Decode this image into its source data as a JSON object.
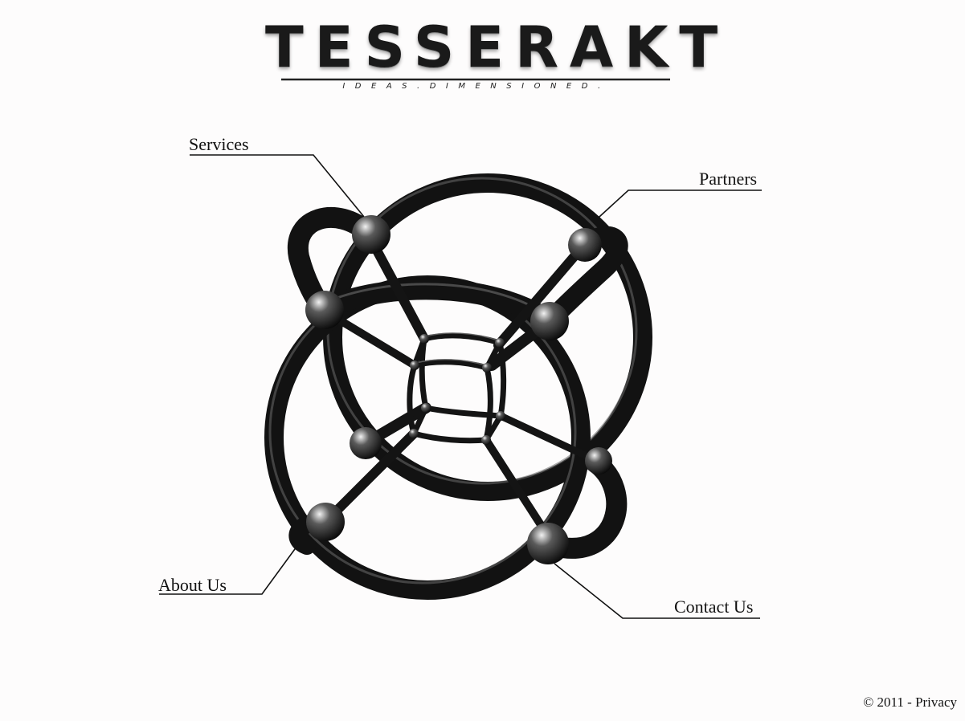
{
  "logo": {
    "wordmark": "TESSERAKT",
    "tagline": "IDEAS.DIMENSIONED."
  },
  "nav": {
    "services": "Services",
    "partners": "Partners",
    "about": "About Us",
    "contact": "Contact Us"
  },
  "footer": {
    "copyright": "© 2011 - ",
    "privacy": "Privacy"
  },
  "colors": {
    "background": "#fdfcfc",
    "tube": "#151515",
    "text": "#111111"
  }
}
